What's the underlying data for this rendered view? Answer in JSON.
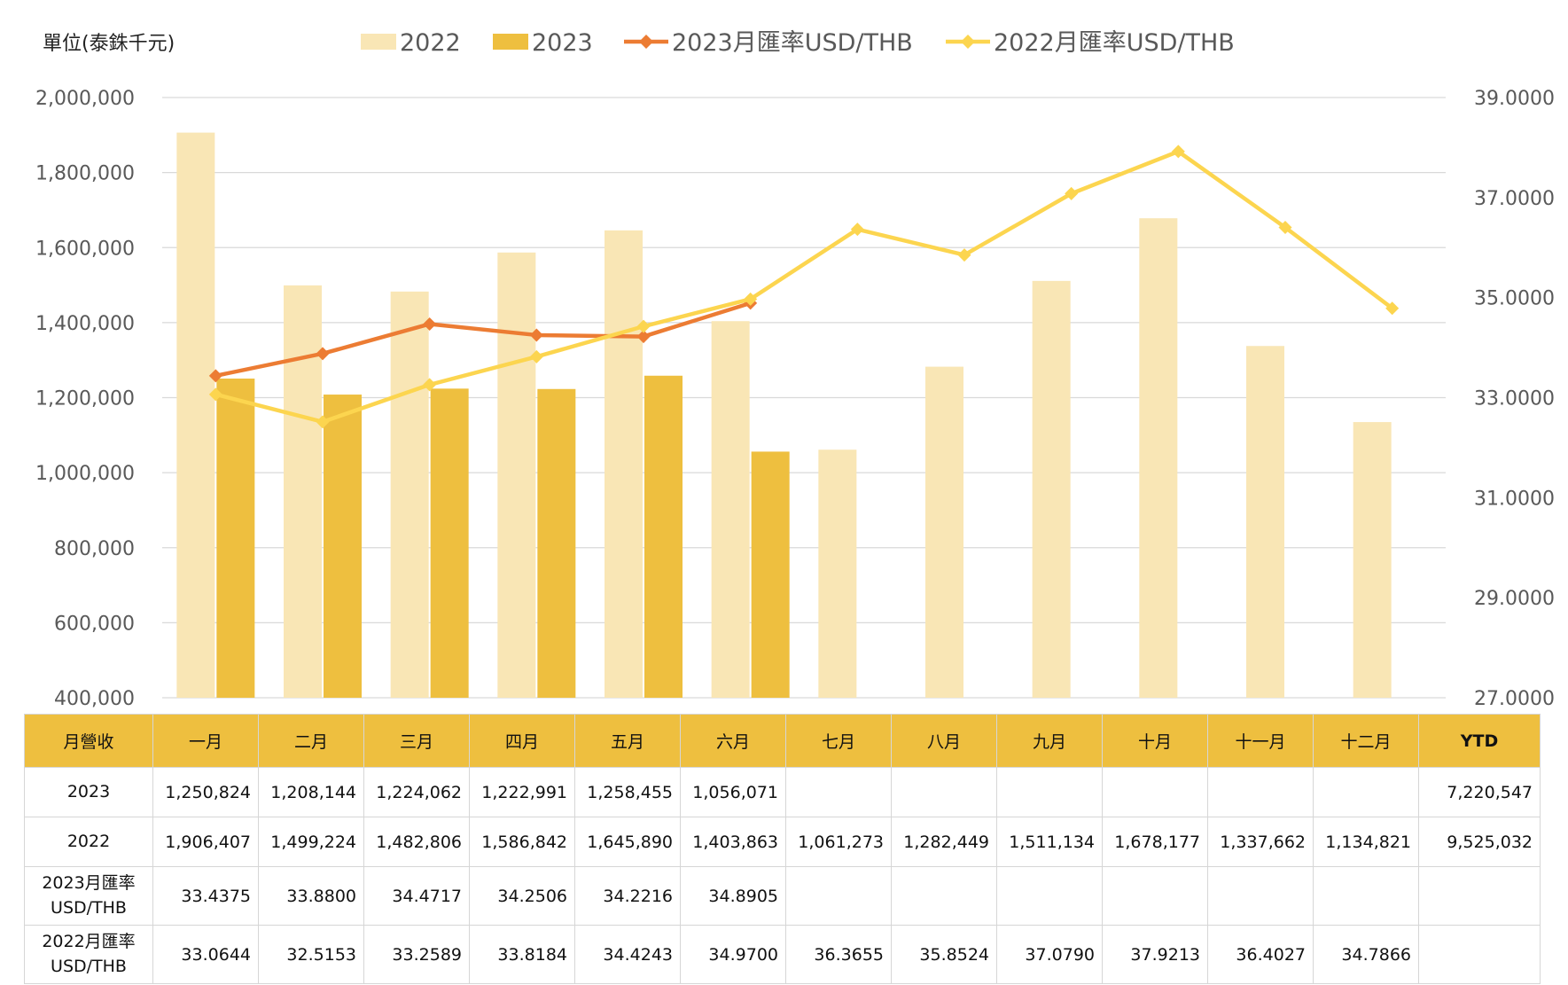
{
  "chart_data": {
    "type": "bar",
    "unit_label": "單位(泰銖千元)",
    "categories": [
      "一月",
      "二月",
      "三月",
      "四月",
      "五月",
      "六月",
      "七月",
      "八月",
      "九月",
      "十月",
      "十一月",
      "十二月"
    ],
    "series": [
      {
        "name": "2022",
        "kind": "bar",
        "color": "#f9e6b5",
        "values": [
          1906407,
          1499224,
          1482806,
          1586842,
          1645890,
          1403863,
          1061273,
          1282449,
          1511134,
          1678177,
          1337662,
          1134821
        ]
      },
      {
        "name": "2023",
        "kind": "bar",
        "color": "#eebf3f",
        "values": [
          1250824,
          1208144,
          1224062,
          1222991,
          1258455,
          1056071,
          null,
          null,
          null,
          null,
          null,
          null
        ]
      },
      {
        "name": "2023月匯率USD/THB",
        "kind": "line",
        "axis": "right",
        "color": "#ec7c33",
        "values": [
          33.4375,
          33.88,
          34.4717,
          34.2506,
          34.2216,
          34.8905,
          null,
          null,
          null,
          null,
          null,
          null
        ]
      },
      {
        "name": "2022月匯率USD/THB",
        "kind": "line",
        "axis": "right",
        "color": "#fcd54f",
        "values": [
          33.0644,
          32.5153,
          33.2589,
          33.8184,
          34.4243,
          34.97,
          36.3655,
          35.8524,
          37.079,
          37.9213,
          36.4027,
          34.7866
        ]
      }
    ],
    "y_left": {
      "min": 400000,
      "max": 2000000,
      "step": 200000,
      "tick_labels": [
        "400,000",
        "600,000",
        "800,000",
        "1,000,000",
        "1,200,000",
        "1,400,000",
        "1,600,000",
        "1,800,000",
        "2,000,000"
      ]
    },
    "y_right": {
      "min": 27,
      "max": 39,
      "step": 2,
      "tick_labels": [
        "27.0000",
        "29.0000",
        "31.0000",
        "33.0000",
        "35.0000",
        "37.0000",
        "39.0000"
      ]
    },
    "grid": true,
    "legend_position": "top"
  },
  "table": {
    "header": [
      "月營收",
      "一月",
      "二月",
      "三月",
      "四月",
      "五月",
      "六月",
      "七月",
      "八月",
      "九月",
      "十月",
      "十一月",
      "十二月",
      "YTD"
    ],
    "rows": [
      {
        "label": [
          "2023"
        ],
        "cells": [
          "1,250,824",
          "1,208,144",
          "1,224,062",
          "1,222,991",
          "1,258,455",
          "1,056,071",
          "",
          "",
          "",
          "",
          "",
          "",
          "7,220,547"
        ]
      },
      {
        "label": [
          "2022"
        ],
        "cells": [
          "1,906,407",
          "1,499,224",
          "1,482,806",
          "1,586,842",
          "1,645,890",
          "1,403,863",
          "1,061,273",
          "1,282,449",
          "1,511,134",
          "1,678,177",
          "1,337,662",
          "1,134,821",
          "9,525,032"
        ]
      },
      {
        "label": [
          "2023月匯率",
          "USD/THB"
        ],
        "cells": [
          "33.4375",
          "33.8800",
          "34.4717",
          "34.2506",
          "34.2216",
          "34.8905",
          "",
          "",
          "",
          "",
          "",
          "",
          ""
        ]
      },
      {
        "label": [
          "2022月匯率",
          "USD/THB"
        ],
        "cells": [
          "33.0644",
          "32.5153",
          "33.2589",
          "33.8184",
          "34.4243",
          "34.9700",
          "36.3655",
          "35.8524",
          "37.0790",
          "37.9213",
          "36.4027",
          "34.7866",
          ""
        ]
      }
    ]
  }
}
